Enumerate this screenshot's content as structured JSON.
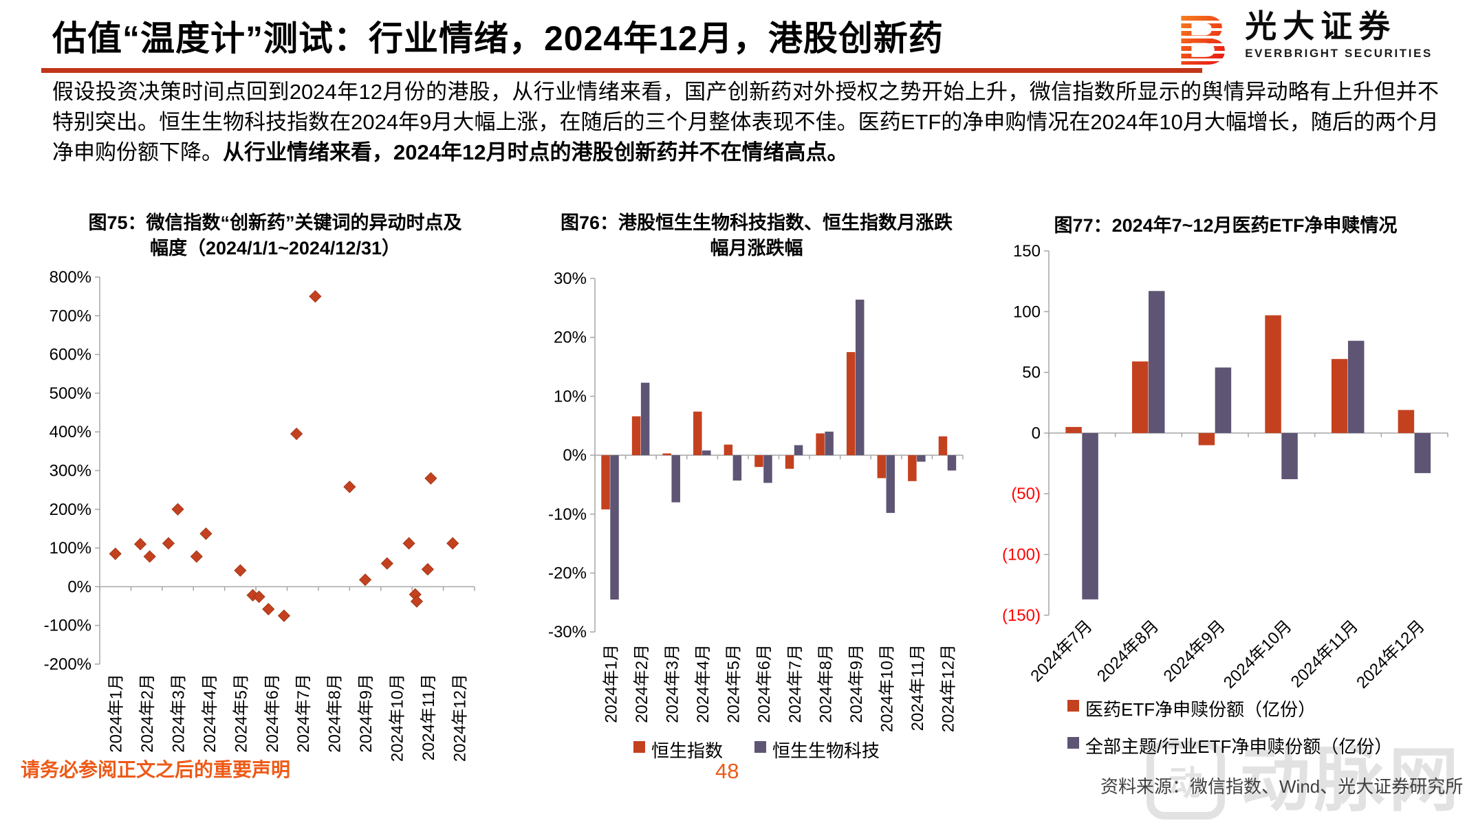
{
  "header": {
    "title": "估值“温度计”测试：行业情绪，2024年12月，港股创新药",
    "logo": {
      "zh": "光大证券",
      "en": "EVERBRIGHT SECURITIES",
      "mark_letter": "B"
    }
  },
  "paragraph": {
    "normal": "假设投资决策时间点回到2024年12月份的港股，从行业情绪来看，国产创新药对外授权之势开始上升，微信指数所显示的舆情异动略有上升但并不特别突出。恒生生物科技指数在2024年9月大幅上涨，在随后的三个月整体表现不佳。医药ETF的净申购情况在2024年10月大幅增长，随后的两个月净申购份额下降。",
    "bold": "从行业情绪来看，2024年12月时点的港股创新药并不在情绪高点。"
  },
  "colors": {
    "accent_rule": "#c1351a",
    "series_red": "#c4411f",
    "series_purple": "#5e5574",
    "axis_gray": "#a6a6a6",
    "negative_tick": "#ff0000",
    "footer_orange": "#ed5a17",
    "source_gray": "#3f3f3f",
    "watermark_gray": "#e2e2e2"
  },
  "chart_data": [
    {
      "type": "scatter",
      "title": "图75：微信指数“创新药”关键词的异动时点及幅度（2024/1/1~2024/12/31）",
      "x_categories": [
        "2024年1月",
        "2024年2月",
        "2024年3月",
        "2024年4月",
        "2024年5月",
        "2024年6月",
        "2024年7月",
        "2024年8月",
        "2024年9月",
        "2024年10月",
        "2024年11月",
        "2024年12月"
      ],
      "y_ticks": [
        "800%",
        "700%",
        "600%",
        "500%",
        "400%",
        "300%",
        "200%",
        "100%",
        "0%",
        "-100%",
        "-200%"
      ],
      "ylim": [
        -200,
        800
      ],
      "ystep": 100,
      "ylabel": "",
      "xlabel": "",
      "grid": false,
      "marker": "diamond",
      "points_note": "x is month position on a 0-12 date axis, y is percent",
      "points": [
        [
          0.5,
          85
        ],
        [
          1.3,
          110
        ],
        [
          1.6,
          78
        ],
        [
          2.2,
          112
        ],
        [
          2.5,
          200
        ],
        [
          3.1,
          78
        ],
        [
          3.4,
          137
        ],
        [
          4.5,
          42
        ],
        [
          4.9,
          -22
        ],
        [
          5.1,
          -26
        ],
        [
          5.4,
          -58
        ],
        [
          5.9,
          -75
        ],
        [
          6.3,
          395
        ],
        [
          6.9,
          750
        ],
        [
          8.0,
          258
        ],
        [
          8.5,
          18
        ],
        [
          9.2,
          60
        ],
        [
          9.9,
          112
        ],
        [
          10.1,
          -20
        ],
        [
          10.15,
          -38
        ],
        [
          10.5,
          45
        ],
        [
          10.6,
          280
        ],
        [
          11.3,
          112
        ]
      ]
    },
    {
      "type": "bar",
      "title": "图76：港股恒生生物科技指数、恒生指数月涨跌幅月涨跌幅",
      "categories": [
        "2024年1月",
        "2024年2月",
        "2024年3月",
        "2024年4月",
        "2024年5月",
        "2024年6月",
        "2024年7月",
        "2024年8月",
        "2024年9月",
        "2024年10月",
        "2024年11月",
        "2024年12月"
      ],
      "y_ticks": [
        "30%",
        "20%",
        "10%",
        "0%",
        "-10%",
        "-20%",
        "-30%"
      ],
      "ylim": [
        -30,
        30
      ],
      "ystep": 10,
      "grid": false,
      "legend_position": "bottom-center",
      "series": [
        {
          "name": "恒生指数",
          "color": "#c4411f",
          "values": [
            -9.2,
            6.6,
            0.3,
            7.4,
            1.8,
            -2.0,
            -2.3,
            3.7,
            17.5,
            -3.9,
            -4.4,
            3.2
          ]
        },
        {
          "name": "恒生生物科技",
          "color": "#5e5574",
          "values": [
            -24.5,
            12.3,
            -8.0,
            0.8,
            -4.3,
            -4.7,
            1.7,
            4.0,
            26.4,
            -9.8,
            -1.1,
            -2.6
          ]
        }
      ]
    },
    {
      "type": "bar",
      "title": "图77：2024年7~12月医药ETF净申赎情况",
      "categories": [
        "2024年7月",
        "2024年8月",
        "2024年9月",
        "2024年10月",
        "2024年11月",
        "2024年12月"
      ],
      "y_ticks": [
        "150",
        "100",
        "50",
        "0",
        "(50)",
        "(100)",
        "(150)"
      ],
      "ylim": [
        -150,
        150
      ],
      "ystep": 50,
      "grid": false,
      "x_label_rotation": -45,
      "legend_position": "bottom-left-stacked",
      "series": [
        {
          "name": "医药ETF净申赎份额（亿份）",
          "color": "#c4411f",
          "values": [
            5,
            59,
            -10,
            97,
            61,
            19
          ]
        },
        {
          "name": "全部主题/行业ETF净申赎份额（亿份）",
          "color": "#5e5574",
          "values": [
            -137,
            117,
            54,
            -38,
            76,
            -33
          ]
        }
      ]
    }
  ],
  "footer": {
    "disclaimer": "请务必参阅正文之后的重要声明",
    "page_number": "48",
    "source": "资料来源：微信指数、Wind、光大证券研究所",
    "watermark": "动脉网",
    "watermark_mark": "动"
  }
}
